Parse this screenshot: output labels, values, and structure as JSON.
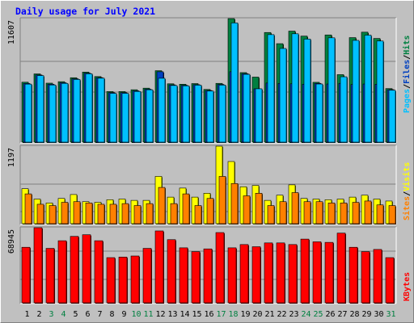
{
  "title": "Daily usage for July 2021",
  "colors": {
    "hits": "#008040",
    "files": "#0040c0",
    "pages": "#00c0ff",
    "visits": "#ffff00",
    "sites": "#ff8000",
    "kbytes": "#ff0000",
    "panel_bg": "#c0c0c0",
    "gridline": "#808080",
    "day_weekday": "#000000",
    "day_weekend": "#008040"
  },
  "chart_data": [
    {
      "type": "bar",
      "panel": "hits-files-pages",
      "categories": [
        "1",
        "2",
        "3",
        "4",
        "5",
        "6",
        "7",
        "8",
        "9",
        "10",
        "11",
        "12",
        "13",
        "14",
        "15",
        "16",
        "17",
        "18",
        "19",
        "20",
        "21",
        "22",
        "23",
        "24",
        "25",
        "26",
        "27",
        "28",
        "29",
        "30",
        "31"
      ],
      "weekend_days": [
        "3",
        "4",
        "10",
        "11",
        "17",
        "18",
        "24",
        "25",
        "31"
      ],
      "ylim": [
        0,
        11607
      ],
      "max_label": "11607",
      "legend": [
        "Pages",
        "/",
        "Files",
        "/",
        "Hits"
      ],
      "series": [
        {
          "name": "Hits",
          "values": [
            5630,
            6410,
            5540,
            5680,
            6050,
            6580,
            6160,
            4750,
            4750,
            4920,
            5070,
            6710,
            5480,
            5440,
            5500,
            4950,
            5520,
            11607,
            6530,
            6110,
            10300,
            9250,
            10430,
            9960,
            5620,
            10070,
            6340,
            9820,
            10330,
            9740,
            5030
          ]
        },
        {
          "name": "Files",
          "values": [
            5510,
            6310,
            5440,
            5580,
            5950,
            6480,
            6060,
            4650,
            4650,
            4820,
            4970,
            6610,
            5380,
            5340,
            5400,
            4850,
            5420,
            6610,
            6430,
            5010,
            5550,
            5510,
            5480,
            5440,
            5520,
            5460,
            5520,
            5410,
            5460,
            5430,
            4930
          ]
        },
        {
          "name": "Pages",
          "values": [
            5450,
            6250,
            5370,
            5520,
            5890,
            6420,
            6010,
            4580,
            4580,
            4760,
            4920,
            6000,
            5320,
            5290,
            5350,
            4800,
            5360,
            11200,
            6370,
            5010,
            10100,
            8800,
            10180,
            9680,
            5460,
            9800,
            6140,
            9560,
            10050,
            9500,
            4880
          ]
        }
      ]
    },
    {
      "type": "bar",
      "panel": "visits-sites",
      "categories": [
        "1",
        "2",
        "3",
        "4",
        "5",
        "6",
        "7",
        "8",
        "9",
        "10",
        "11",
        "12",
        "13",
        "14",
        "15",
        "16",
        "17",
        "18",
        "19",
        "20",
        "21",
        "22",
        "23",
        "24",
        "25",
        "26",
        "27",
        "28",
        "29",
        "30",
        "31"
      ],
      "ylim": [
        0,
        1197
      ],
      "max_label": "1197",
      "legend": [
        "Sites",
        "/",
        "Visits"
      ],
      "series": [
        {
          "name": "Visits",
          "values": [
            540,
            380,
            320,
            390,
            450,
            340,
            330,
            370,
            380,
            360,
            360,
            730,
            410,
            550,
            410,
            470,
            1197,
            960,
            570,
            590,
            360,
            440,
            600,
            390,
            380,
            370,
            380,
            410,
            440,
            380,
            350
          ]
        },
        {
          "name": "Sites",
          "values": [
            460,
            300,
            280,
            330,
            340,
            320,
            300,
            300,
            310,
            280,
            310,
            560,
            310,
            460,
            280,
            390,
            730,
            620,
            430,
            470,
            280,
            340,
            480,
            340,
            340,
            320,
            320,
            330,
            350,
            290,
            280
          ]
        }
      ]
    },
    {
      "type": "bar",
      "panel": "kbytes",
      "categories": [
        "1",
        "2",
        "3",
        "4",
        "5",
        "6",
        "7",
        "8",
        "9",
        "10",
        "11",
        "12",
        "13",
        "14",
        "15",
        "16",
        "17",
        "18",
        "19",
        "20",
        "21",
        "22",
        "23",
        "24",
        "25",
        "26",
        "27",
        "28",
        "29",
        "30",
        "31"
      ],
      "ylim": [
        0,
        68945
      ],
      "max_label": "68945",
      "legend": [
        "KBytes"
      ],
      "series": [
        {
          "name": "KBytes",
          "values": [
            51000,
            68945,
            50000,
            57000,
            61000,
            62500,
            57000,
            41500,
            42000,
            43000,
            50000,
            66000,
            58000,
            50500,
            47000,
            49500,
            64500,
            50500,
            53500,
            51500,
            55000,
            55000,
            53500,
            58500,
            56000,
            55500,
            64000,
            51000,
            47000,
            49000,
            41500
          ]
        }
      ]
    }
  ]
}
